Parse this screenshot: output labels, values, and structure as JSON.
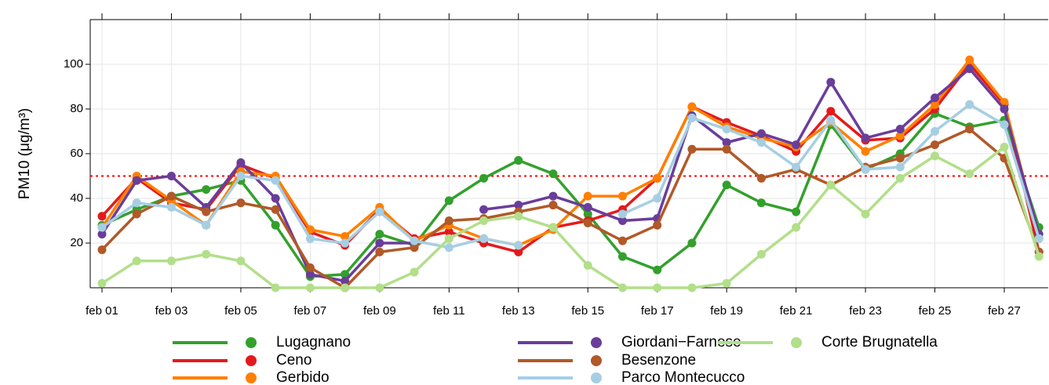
{
  "chart_data": {
    "type": "line",
    "y_label": "PM10 (μg/m³)",
    "categories": [
      "feb 01",
      null,
      "feb 03",
      null,
      "feb 05",
      null,
      "feb 07",
      null,
      "feb 09",
      null,
      "feb 11",
      null,
      "feb 13",
      null,
      "feb 15",
      null,
      "feb 17",
      null,
      "feb 19",
      null,
      "feb 21",
      null,
      "feb 23",
      null,
      "feb 25",
      null,
      "feb 27",
      null
    ],
    "series": [
      {
        "name": "Lugagnano",
        "color": "#33a02c",
        "values": [
          28,
          35,
          41,
          44,
          48,
          28,
          5,
          6,
          24,
          19,
          39,
          49,
          57,
          51,
          33,
          14,
          8,
          20,
          46,
          38,
          34,
          73,
          53,
          60,
          78,
          72,
          75,
          27
        ]
      },
      {
        "name": "Ceno",
        "color": "#e31a1c",
        "values": [
          32,
          49,
          38,
          35,
          55,
          49,
          25,
          19,
          35,
          22,
          25,
          20,
          16,
          27,
          30,
          35,
          49,
          81,
          74,
          68,
          61,
          79,
          66,
          67,
          80,
          100,
          82,
          16
        ]
      },
      {
        "name": "Gerbido",
        "color": "#ff7f00",
        "values": [
          27,
          50,
          39,
          28,
          52,
          50,
          26,
          23,
          36,
          21,
          28,
          22,
          19,
          26,
          41,
          41,
          49,
          81,
          72,
          67,
          63,
          74,
          61,
          68,
          82,
          102,
          83,
          22
        ]
      },
      {
        "name": "Giordani−Farnese",
        "color": "#6a3d9a",
        "values": [
          24,
          48,
          50,
          36,
          56,
          40,
          6,
          3,
          20,
          20,
          null,
          35,
          37,
          41,
          36,
          30,
          31,
          77,
          65,
          69,
          64,
          92,
          67,
          71,
          85,
          98,
          80,
          24
        ]
      },
      {
        "name": "Besenzone",
        "color": "#b15928",
        "values": [
          17,
          33,
          41,
          34,
          38,
          35,
          9,
          0,
          16,
          18,
          30,
          31,
          34,
          37,
          29,
          21,
          28,
          62,
          62,
          49,
          53,
          46,
          54,
          58,
          64,
          71,
          58,
          16
        ]
      },
      {
        "name": "Parco Montecucco",
        "color": "#a6cee3",
        "values": [
          27,
          38,
          36,
          28,
          50,
          48,
          22,
          20,
          34,
          21,
          18,
          22,
          19,
          null,
          null,
          33,
          40,
          76,
          71,
          65,
          54,
          75,
          53,
          54,
          70,
          82,
          73,
          22
        ]
      },
      {
        "name": "Corte Brugnatella",
        "color": "#b2df8a",
        "values": [
          2,
          12,
          12,
          15,
          12,
          0,
          0,
          0,
          0,
          7,
          22,
          30,
          32,
          27,
          10,
          0,
          0,
          0,
          2,
          15,
          27,
          46,
          33,
          49,
          59,
          51,
          63,
          14
        ]
      }
    ],
    "ylim": [
      0,
      120
    ],
    "yticks": [
      20,
      40,
      60,
      80,
      100
    ],
    "grid": true,
    "reference_line": {
      "value": 50,
      "color": "#ff0000"
    },
    "legend": "bottom"
  }
}
